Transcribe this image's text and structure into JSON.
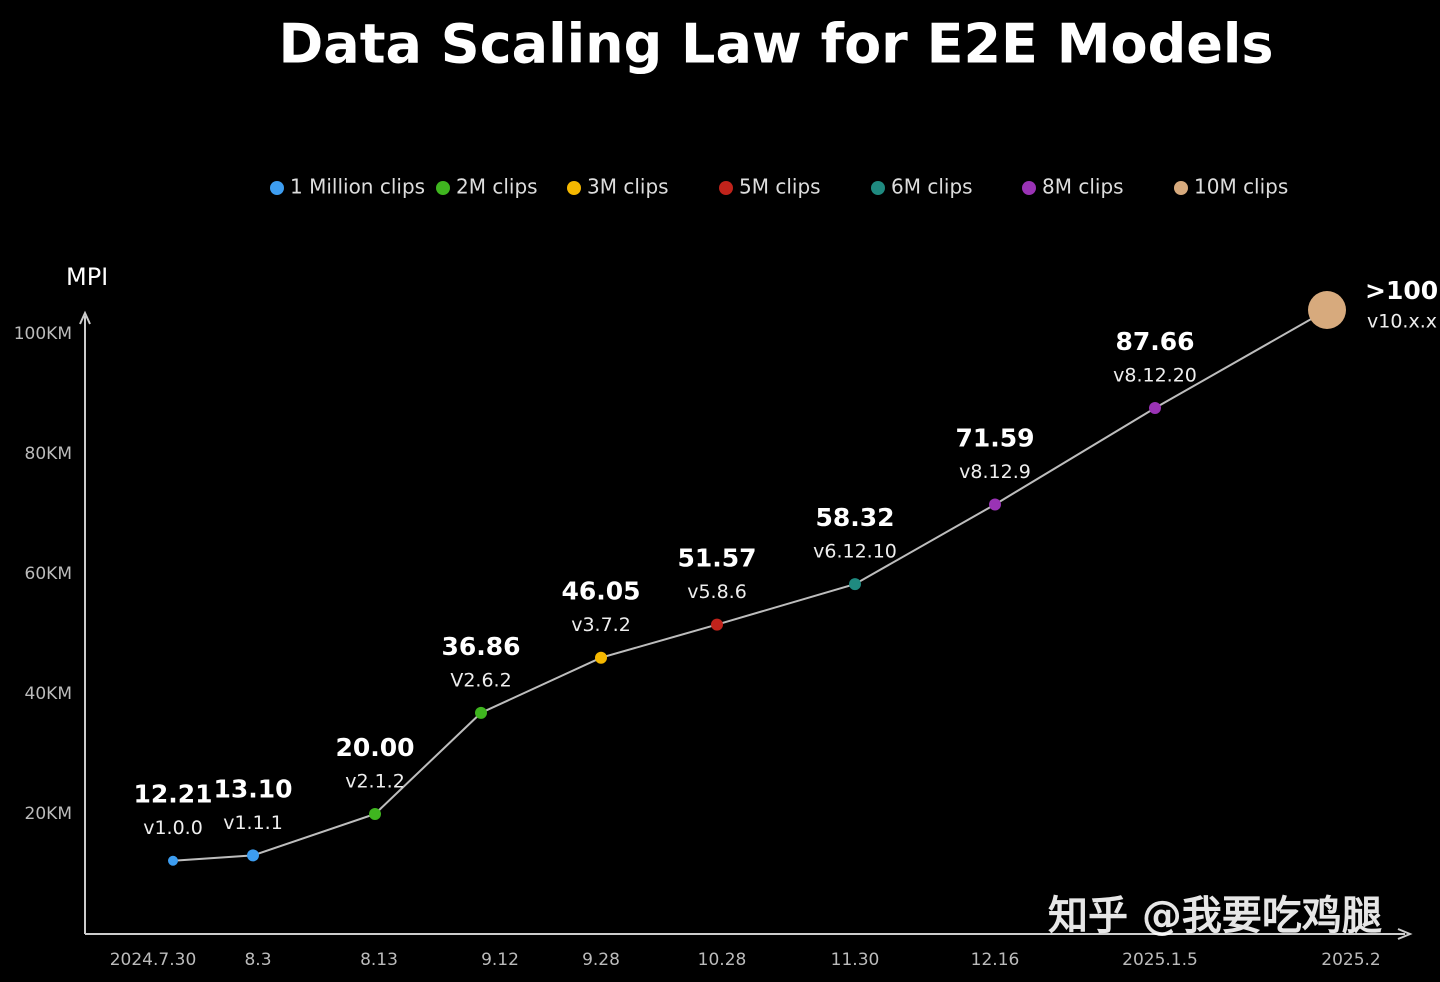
{
  "chart_data": {
    "type": "line",
    "title": "Data Scaling Law for E2E Models",
    "y_label": "MPI",
    "categories": [
      "2024.7.30",
      "8.3",
      "8.13",
      "9.12",
      "9.28",
      "10.28",
      "11.30",
      "12.16",
      "2025.1.5",
      "2025.2"
    ],
    "versions": [
      "v1.0.0",
      "v1.1.1",
      "v2.1.2",
      "V2.6.2",
      "v3.7.2",
      "v5.8.6",
      "v6.12.10",
      "v8.12.9",
      "v8.12.20",
      "v10.x.x"
    ],
    "series": [
      {
        "name": "1 Million clips",
        "color": "#3d9df0",
        "values": [
          12.21,
          13.1,
          null,
          null,
          null,
          null,
          null,
          null,
          null,
          null
        ],
        "value_labels": [
          "12.21",
          "13.10",
          null,
          null,
          null,
          null,
          null,
          null,
          null,
          null
        ]
      },
      {
        "name": "2M clips",
        "color": "#3fb51f",
        "values": [
          null,
          null,
          20.0,
          36.86,
          null,
          null,
          null,
          null,
          null,
          null
        ],
        "value_labels": [
          null,
          null,
          "20.00",
          "36.86",
          null,
          null,
          null,
          null,
          null,
          null
        ]
      },
      {
        "name": "3M clips",
        "color": "#f5b800",
        "values": [
          null,
          null,
          null,
          null,
          46.05,
          null,
          null,
          null,
          null,
          null
        ],
        "value_labels": [
          null,
          null,
          null,
          null,
          "46.05",
          null,
          null,
          null,
          null,
          null
        ]
      },
      {
        "name": "5M clips",
        "color": "#c0231b",
        "values": [
          null,
          null,
          null,
          null,
          null,
          51.57,
          null,
          null,
          null,
          null
        ],
        "value_labels": [
          null,
          null,
          null,
          null,
          null,
          "51.57",
          null,
          null,
          null,
          null
        ]
      },
      {
        "name": "6M clips",
        "color": "#1f8a80",
        "values": [
          null,
          null,
          null,
          null,
          null,
          null,
          58.32,
          null,
          null,
          null
        ],
        "value_labels": [
          null,
          null,
          null,
          null,
          null,
          null,
          "58.32",
          null,
          null,
          null
        ]
      },
      {
        "name": "8M clips",
        "color": "#9a33b5",
        "values": [
          null,
          null,
          null,
          null,
          null,
          null,
          null,
          71.59,
          87.66,
          null
        ],
        "value_labels": [
          null,
          null,
          null,
          null,
          null,
          null,
          null,
          "71.59",
          "87.66",
          null
        ]
      },
      {
        "name": "10M clips",
        "color": "#d7aa7d",
        "values": [
          null,
          null,
          null,
          null,
          null,
          null,
          null,
          null,
          null,
          104
        ],
        "value_labels": [
          null,
          null,
          null,
          null,
          null,
          null,
          null,
          null,
          null,
          ">100"
        ]
      }
    ],
    "ylim": [
      0,
      105
    ],
    "yticks": [
      {
        "value": 20,
        "label": "20KM"
      },
      {
        "value": 40,
        "label": "40KM"
      },
      {
        "value": 60,
        "label": "60KM"
      },
      {
        "value": 80,
        "label": "80KM"
      },
      {
        "value": 100,
        "label": "100KM"
      }
    ],
    "line_color": "#bdbdbd",
    "watermark": "知乎 @我要吃鸡腿"
  }
}
